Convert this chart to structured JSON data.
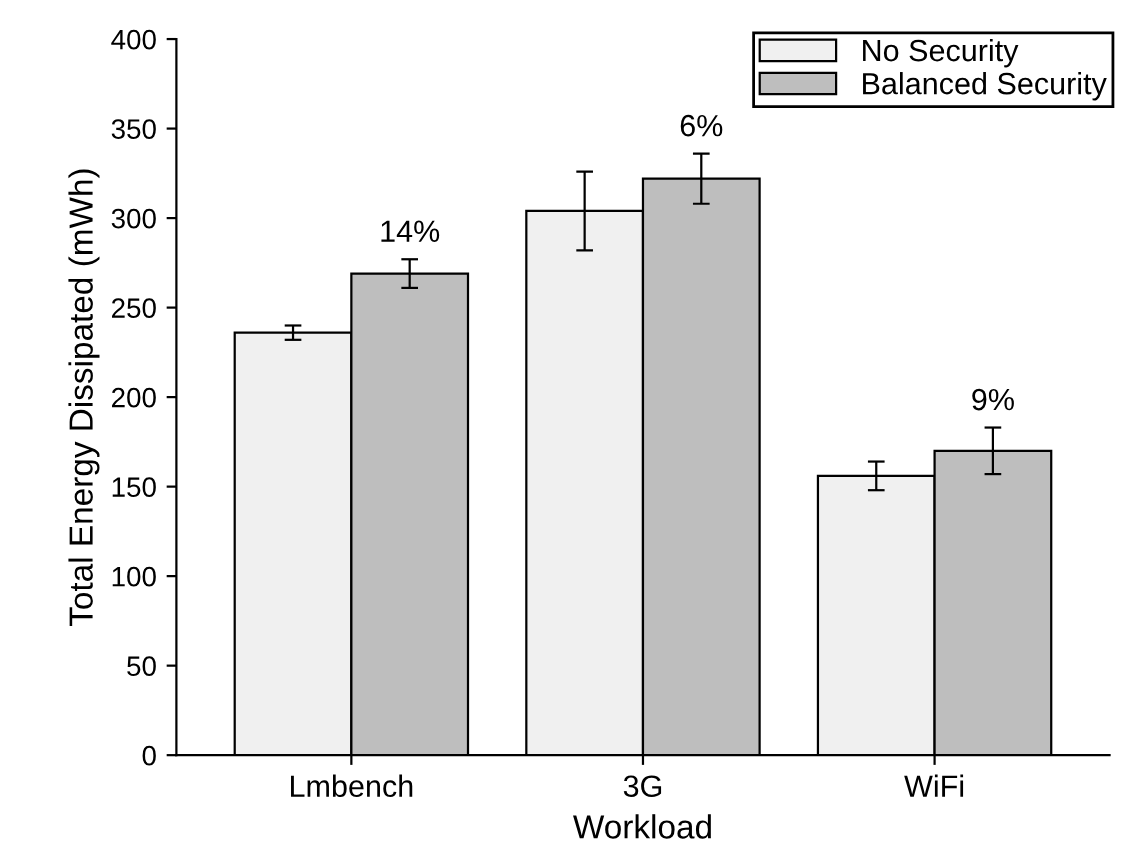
{
  "chart_data": {
    "type": "bar",
    "xlabel": "Workload",
    "ylabel": "Total Energy Dissipated (mWh)",
    "categories": [
      "Lmbench",
      "3G",
      "WiFi"
    ],
    "series": [
      {
        "name": "No Security",
        "color": "#f0f0f0",
        "values": [
          236,
          304,
          156
        ],
        "errors": [
          4,
          22,
          8
        ]
      },
      {
        "name": "Balanced Security",
        "color": "#bebebe",
        "values": [
          269,
          322,
          170
        ],
        "errors": [
          8,
          14,
          13
        ]
      }
    ],
    "annotations": [
      "14%",
      "6%",
      "9%"
    ],
    "ylim": [
      0,
      400
    ],
    "yticks": [
      0,
      50,
      100,
      150,
      200,
      250,
      300,
      350,
      400
    ],
    "grid": false,
    "legend": "top right"
  }
}
